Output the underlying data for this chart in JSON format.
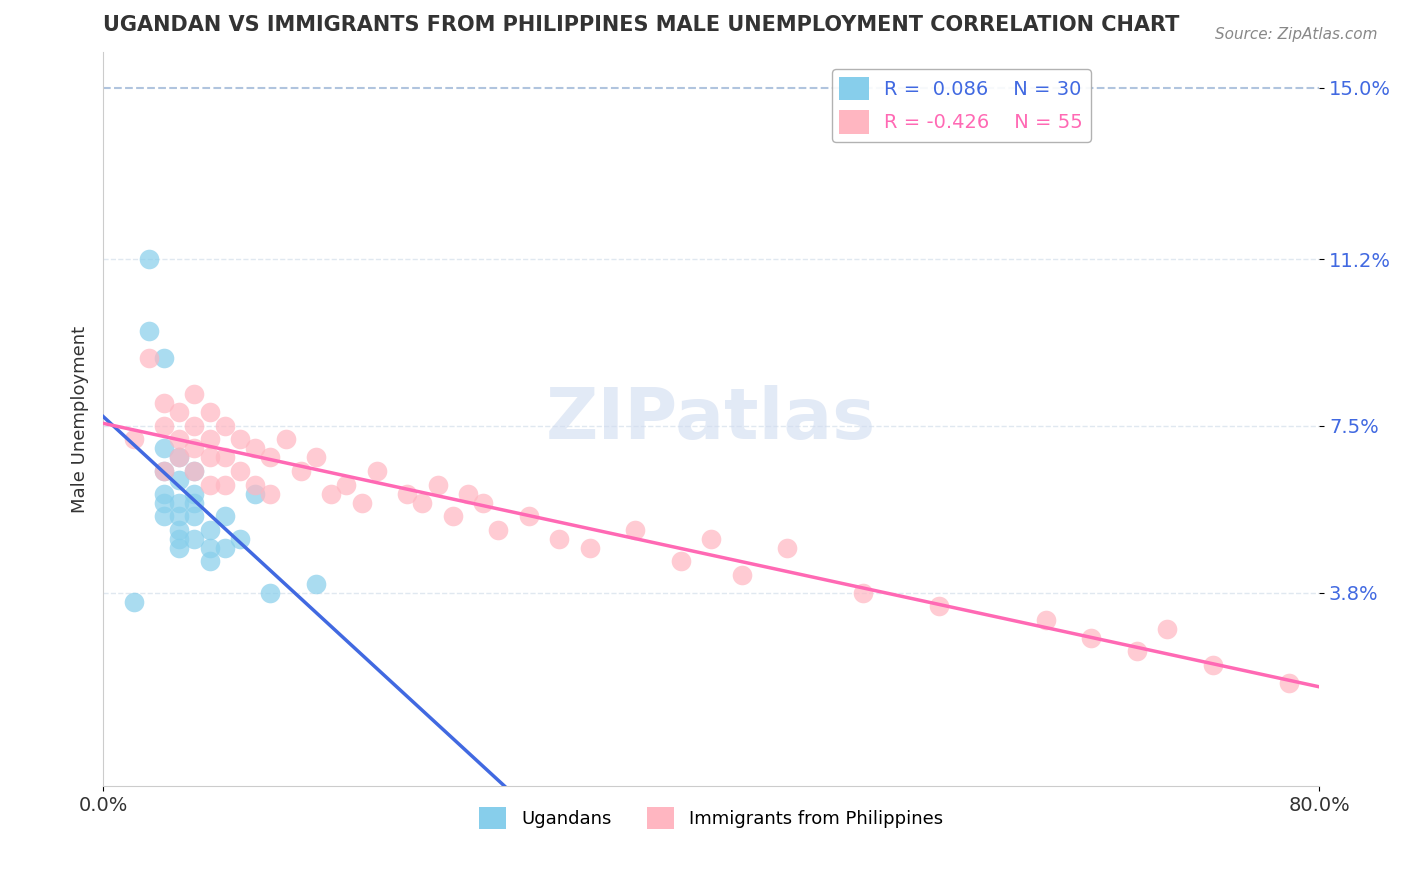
{
  "title": "UGANDAN VS IMMIGRANTS FROM PHILIPPINES MALE UNEMPLOYMENT CORRELATION CHART",
  "source": "Source: ZipAtlas.com",
  "ylabel": "Male Unemployment",
  "xlim": [
    0,
    0.8
  ],
  "ylim": [
    -0.005,
    0.158
  ],
  "ytick_positions": [
    0.038,
    0.075,
    0.112,
    0.15
  ],
  "ytick_labels": [
    "3.8%",
    "7.5%",
    "11.2%",
    "15.0%"
  ],
  "legend_r1": "R =  0.086",
  "legend_n1": "N = 30",
  "legend_r2": "R = -0.426",
  "legend_n2": "N = 55",
  "color_ugandan": "#87CEEB",
  "color_philippines": "#FFB6C1",
  "color_ugandan_line": "#4169E1",
  "color_philippines_line": "#FF69B4",
  "color_ref_line": "#B0C4DE",
  "color_grid": "#E0E8F0",
  "color_ytick_label": "#4169E1",
  "watermark": "ZIPatlas",
  "ugandan_x": [
    0.02,
    0.03,
    0.03,
    0.04,
    0.04,
    0.04,
    0.04,
    0.04,
    0.04,
    0.05,
    0.05,
    0.05,
    0.05,
    0.05,
    0.05,
    0.05,
    0.06,
    0.06,
    0.06,
    0.06,
    0.06,
    0.07,
    0.07,
    0.07,
    0.08,
    0.08,
    0.09,
    0.1,
    0.11,
    0.14
  ],
  "ugandan_y": [
    0.036,
    0.112,
    0.096,
    0.09,
    0.07,
    0.065,
    0.06,
    0.058,
    0.055,
    0.068,
    0.063,
    0.058,
    0.055,
    0.052,
    0.05,
    0.048,
    0.065,
    0.06,
    0.058,
    0.055,
    0.05,
    0.052,
    0.048,
    0.045,
    0.055,
    0.048,
    0.05,
    0.06,
    0.038,
    0.04
  ],
  "phil_x": [
    0.02,
    0.03,
    0.04,
    0.04,
    0.04,
    0.05,
    0.05,
    0.05,
    0.06,
    0.06,
    0.06,
    0.06,
    0.07,
    0.07,
    0.07,
    0.07,
    0.08,
    0.08,
    0.08,
    0.09,
    0.09,
    0.1,
    0.1,
    0.11,
    0.11,
    0.12,
    0.13,
    0.14,
    0.15,
    0.16,
    0.17,
    0.18,
    0.2,
    0.21,
    0.22,
    0.23,
    0.24,
    0.25,
    0.26,
    0.28,
    0.3,
    0.32,
    0.35,
    0.38,
    0.4,
    0.42,
    0.45,
    0.5,
    0.55,
    0.62,
    0.65,
    0.68,
    0.7,
    0.73,
    0.78
  ],
  "phil_y": [
    0.072,
    0.09,
    0.08,
    0.075,
    0.065,
    0.078,
    0.072,
    0.068,
    0.082,
    0.075,
    0.07,
    0.065,
    0.078,
    0.072,
    0.068,
    0.062,
    0.075,
    0.068,
    0.062,
    0.072,
    0.065,
    0.07,
    0.062,
    0.068,
    0.06,
    0.072,
    0.065,
    0.068,
    0.06,
    0.062,
    0.058,
    0.065,
    0.06,
    0.058,
    0.062,
    0.055,
    0.06,
    0.058,
    0.052,
    0.055,
    0.05,
    0.048,
    0.052,
    0.045,
    0.05,
    0.042,
    0.048,
    0.038,
    0.035,
    0.032,
    0.028,
    0.025,
    0.03,
    0.022,
    0.018
  ]
}
